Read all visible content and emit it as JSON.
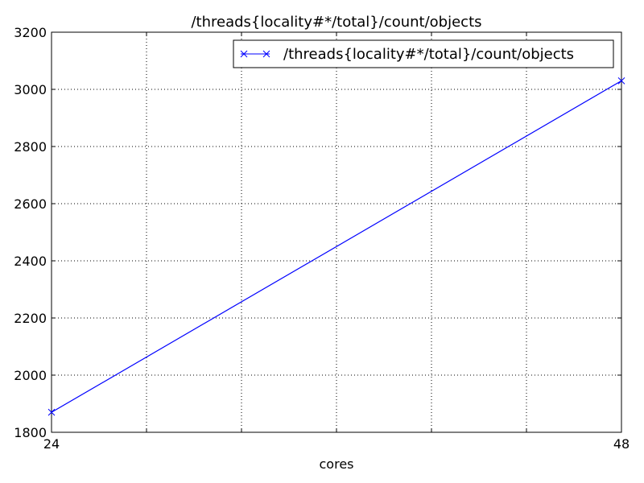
{
  "chart_data": {
    "type": "line",
    "title": "/threads{locality#*/total}/count/objects",
    "xlabel": "cores",
    "ylabel": "",
    "x": [
      24,
      48
    ],
    "xlim": [
      24,
      48
    ],
    "xticks": [
      24,
      28,
      32,
      36,
      40,
      44,
      48
    ],
    "xtick_labels": [
      "24",
      "",
      "",
      "",
      "",
      "",
      "48"
    ],
    "ylim": [
      1800,
      3200
    ],
    "yticks": [
      1800,
      2000,
      2200,
      2400,
      2600,
      2800,
      3000,
      3200
    ],
    "ytick_labels": [
      "1800",
      "2000",
      "2200",
      "2400",
      "2600",
      "2800",
      "3000",
      "3200"
    ],
    "grid": true,
    "legend_position": "top-right",
    "series": [
      {
        "name": "/threads{locality#*/total}/count/objects",
        "values": [
          1870,
          3030
        ],
        "color": "#0000ff",
        "marker": "x"
      }
    ]
  }
}
